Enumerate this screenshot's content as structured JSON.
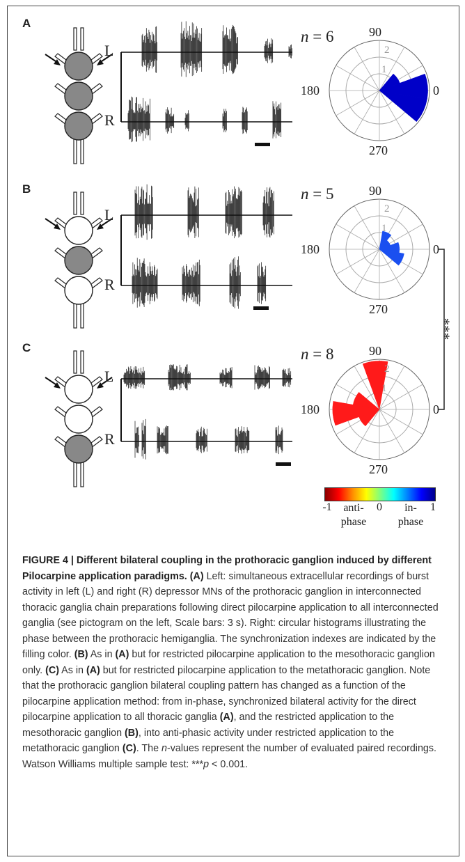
{
  "figure": {
    "panels": [
      {
        "letter": "A",
        "n_label": "n",
        "n_value": "= 6",
        "ganglia_filled": [
          true,
          true,
          true
        ],
        "channels": [
          "L",
          "R"
        ],
        "color": "#0000c8",
        "histogram": [
          {
            "angle": 35,
            "r": 1.3
          },
          {
            "angle": 5,
            "r": 2.9
          },
          {
            "angle": -25,
            "r": 2.9
          }
        ]
      },
      {
        "letter": "B",
        "n_label": "n",
        "n_value": "= 5",
        "ganglia_filled": [
          false,
          true,
          false
        ],
        "channels": [
          "L",
          "R"
        ],
        "color": "#1a4ff0",
        "histogram": [
          {
            "angle": 65,
            "r": 1.1
          },
          {
            "angle": 35,
            "r": 0.7
          },
          {
            "angle": 5,
            "r": 1.2
          },
          {
            "angle": -25,
            "r": 1.5
          }
        ]
      },
      {
        "letter": "C",
        "n_label": "n",
        "n_value": "= 8",
        "ganglia_filled": [
          false,
          false,
          true
        ],
        "channels": [
          "L",
          "R"
        ],
        "color": "#ff1a1a",
        "histogram": [
          {
            "angle": 95,
            "r": 2.9
          },
          {
            "angle": 155,
            "r": 1.6
          },
          {
            "angle": 185,
            "r": 2.8
          },
          {
            "angle": 215,
            "r": 1.3
          }
        ]
      }
    ],
    "polar": {
      "angle_labels": [
        "90",
        "180",
        "0",
        "270"
      ],
      "radius_labels": [
        "1",
        "2"
      ]
    },
    "significance": "***",
    "colorbar": {
      "min": "-1",
      "mid": "0",
      "max": "1",
      "left_label": "anti-\nphase",
      "right_label": "in-\nphase"
    }
  },
  "caption": {
    "title": "FIGURE 4 | Different bilateral coupling in the prothoracic ganglion induced by different Pilocarpine application paradigms.",
    "a_tag": "(A)",
    "a_text": " Left: simultaneous extracellular recordings of burst activity in left (L) and right (R) depressor MNs of the prothoracic ganglion in interconnected thoracic ganglia chain preparations following direct pilocarpine application to all interconnected ganglia (see pictogram on the left, Scale bars: 3 s). Right: circular histograms illustrating the phase between the prothoracic hemiganglia. The synchronization indexes are indicated by the filling color. ",
    "b_tag": "(B)",
    "b_text": " As in ",
    "b_ref": "(A)",
    "b_text2": " but for restricted pilocarpine application to the mesothoracic ganglion only. ",
    "c_tag": "(C)",
    "c_text": " As in ",
    "c_ref": "(A)",
    "c_text2": " but for restricted pilocarpine application to the metathoracic ganglion. Note that the prothoracic ganglion bilateral coupling pattern has changed as a function of the pilocarpine application method: from in-phase, synchronized bilateral activity for the direct pilocarpine application to all thoracic ganglia ",
    "ref_a": "(A)",
    "mid1": ", and the restricted application to the mesothoracic ganglion ",
    "ref_b": "(B)",
    "mid2": ", into anti-phasic activity under restricted application to the metathoracic ganglion ",
    "ref_c": "(C)",
    "mid3": ". The ",
    "n_italic": "n",
    "mid4": "-values represent the number of evaluated paired recordings. Watson Williams multiple sample test: ***",
    "p_italic": "p",
    "end": " < 0.001."
  }
}
